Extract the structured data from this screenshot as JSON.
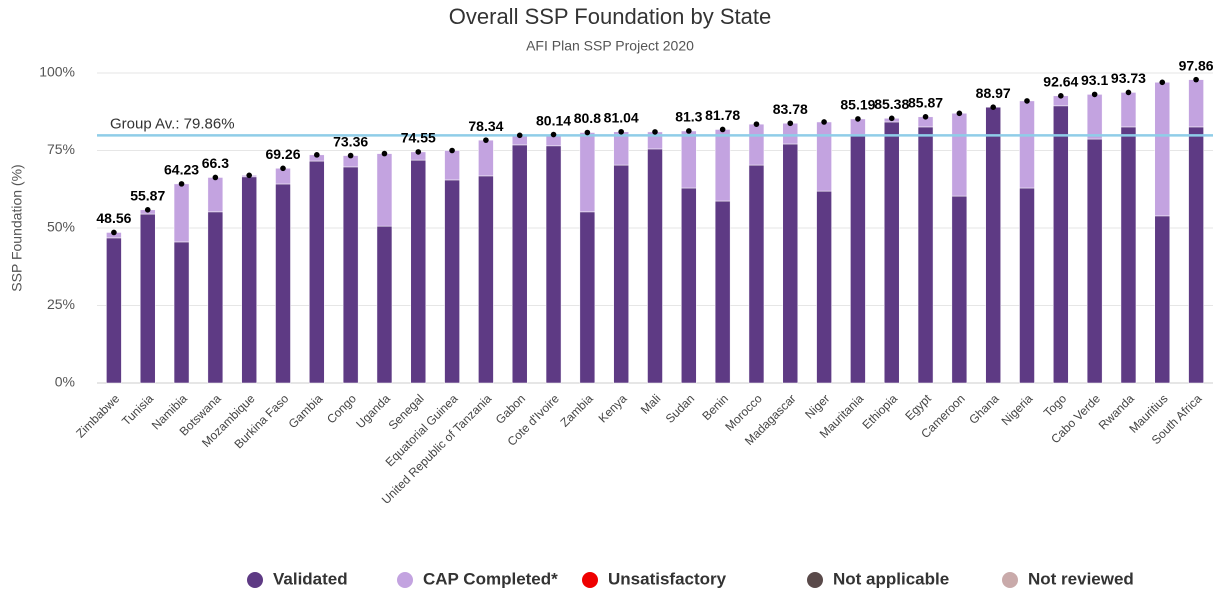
{
  "chart_data": {
    "type": "stacked_bar",
    "title": "Overall SSP Foundation by State",
    "subtitle": "AFI Plan SSP Project 2020",
    "y_label": "SSP Foundation (%)",
    "categories": [
      "Zimbabwe",
      "Tunisia",
      "Namibia",
      "Botswana",
      "Mozambique",
      "Burkina Faso",
      "Gambia",
      "Congo",
      "Uganda",
      "Senegal",
      "Equatorial Guinea",
      "United Republic of Tanzania",
      "Gabon",
      "Cote d'Ivoire",
      "Zambia",
      "Kenya",
      "Mali",
      "Sudan",
      "Benin",
      "Morocco",
      "Madagascar",
      "Niger",
      "Mauritania",
      "Ethiopia",
      "Egypt",
      "Cameroon",
      "Ghana",
      "Nigeria",
      "Togo",
      "Cabo Verde",
      "Rwanda",
      "Mauritius",
      "South Africa"
    ],
    "series": [
      {
        "name": "Validated",
        "color": "#5e3a84",
        "values": [
          46.8,
          54.5,
          45.5,
          55.2,
          66.5,
          64.2,
          71.6,
          69.7,
          50.6,
          71.9,
          65.5,
          66.8,
          76.8,
          76.5,
          55.2,
          70.3,
          75.5,
          62.9,
          58.7,
          70.3,
          77.1,
          61.9,
          80,
          84.2,
          82.6,
          60.3,
          88.97,
          62.9,
          89.4,
          78.7,
          82.6,
          53.9,
          82.6
        ]
      },
      {
        "name": "CAP Completed*",
        "color": "#c3a3e0",
        "values": [
          1.76,
          1.37,
          18.73,
          11.1,
          0.5,
          5.06,
          2,
          3.66,
          23.4,
          2.65,
          9.5,
          11.54,
          3.1,
          3.64,
          25.6,
          10.74,
          5.5,
          18.4,
          23.08,
          13.2,
          6.68,
          22.3,
          5.19,
          1.18,
          3.27,
          26.7,
          0,
          28.1,
          3.24,
          14.4,
          11.13,
          43.1,
          15.26
        ]
      },
      {
        "name": "Unsatisfactory",
        "color": "#ee0000",
        "values": [
          null,
          null,
          null,
          null,
          null,
          null,
          null,
          null,
          null,
          null,
          null,
          null,
          null,
          null,
          null,
          null,
          null,
          null,
          null,
          null,
          null,
          null,
          null,
          null,
          null,
          null,
          null,
          null,
          null,
          null,
          null,
          null,
          null
        ]
      },
      {
        "name": "Not applicable",
        "color": "#5a4a4a",
        "values": [
          null,
          null,
          null,
          null,
          null,
          null,
          null,
          null,
          null,
          null,
          null,
          null,
          null,
          null,
          null,
          null,
          null,
          null,
          null,
          null,
          null,
          null,
          null,
          null,
          null,
          null,
          null,
          null,
          null,
          null,
          null,
          null,
          null
        ]
      },
      {
        "name": "Not reviewed",
        "color": "#c9aaaa",
        "values": [
          null,
          null,
          null,
          null,
          null,
          null,
          null,
          null,
          null,
          null,
          null,
          null,
          null,
          null,
          null,
          null,
          null,
          null,
          null,
          null,
          null,
          null,
          null,
          null,
          null,
          null,
          null,
          null,
          null,
          null,
          null,
          null,
          null
        ]
      }
    ],
    "totals": [
      48.56,
      55.87,
      64.23,
      66.3,
      67,
      69.26,
      73.6,
      73.36,
      74,
      74.55,
      75,
      78.34,
      79.9,
      80.14,
      80.8,
      81.04,
      81,
      81.3,
      81.78,
      83.5,
      83.78,
      84.2,
      85.19,
      85.38,
      85.87,
      87,
      88.97,
      91,
      92.64,
      93.1,
      93.73,
      97,
      97.86
    ],
    "total_labels": [
      48.56,
      55.87,
      64.23,
      66.3,
      null,
      69.26,
      null,
      73.36,
      null,
      74.55,
      null,
      78.34,
      null,
      80.14,
      80.8,
      81.04,
      null,
      81.3,
      81.78,
      null,
      83.78,
      null,
      85.19,
      85.38,
      85.87,
      null,
      88.97,
      null,
      92.64,
      93.1,
      93.73,
      null,
      97.86
    ],
    "totals_color": "#000000",
    "group_average": 79.86,
    "group_average_label": "Group Av.: 79.86%",
    "group_average_color": "#8fcde8",
    "ylim": [
      0,
      100
    ],
    "yticks": [
      {
        "value": 0,
        "label": "0%"
      },
      {
        "value": 25,
        "label": "25%"
      },
      {
        "value": 50,
        "label": "50%"
      },
      {
        "value": 75,
        "label": "75%"
      },
      {
        "value": 100,
        "label": "100%"
      }
    ],
    "grid": true
  }
}
